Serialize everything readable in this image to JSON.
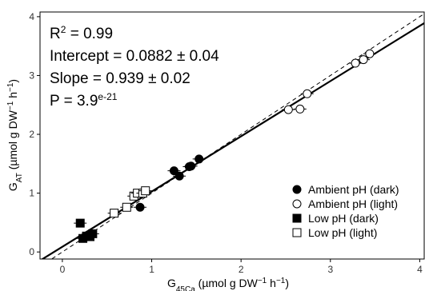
{
  "chart_data": {
    "type": "scatter",
    "xlabel": "G45Ca (µmol g DW⁻¹ h⁻¹)",
    "ylabel": "GAT (µmol g DW⁻¹ h⁻¹)",
    "xlim": [
      -0.25,
      4.05
    ],
    "ylim": [
      -0.12,
      4.08
    ],
    "x_ticks": [
      0,
      1,
      2,
      3,
      4
    ],
    "y_ticks": [
      0,
      1,
      2,
      3,
      4
    ],
    "grid": false,
    "legend_position": "bottom-right",
    "stats": {
      "r2_prefix": "R",
      "r2_sup": "2",
      "r2_value": " = 0.99",
      "intercept": "Intercept = 0.0882 ± 0.04",
      "slope": "Slope = 0.939 ± 0.02",
      "p_prefix": "P = 3.9",
      "p_sup": "e-21"
    },
    "fit_line": {
      "intercept": 0.0882,
      "slope": 0.939,
      "style": "solid"
    },
    "identity_line": {
      "intercept": 0,
      "slope": 1,
      "style": "dashed"
    },
    "series": [
      {
        "name": "Ambient pH (dark)",
        "marker": "filled-circle",
        "points": [
          [
            0.87,
            0.76
          ],
          [
            1.25,
            1.38
          ],
          [
            1.31,
            1.29
          ],
          [
            1.42,
            1.45
          ],
          [
            1.44,
            1.46
          ],
          [
            1.53,
            1.58
          ]
        ]
      },
      {
        "name": "Ambient pH (light)",
        "marker": "open-circle",
        "points": [
          [
            2.53,
            2.42
          ],
          [
            2.66,
            2.43
          ],
          [
            2.74,
            2.69
          ],
          [
            3.28,
            3.21
          ],
          [
            3.37,
            3.27
          ],
          [
            3.44,
            3.37
          ]
        ]
      },
      {
        "name": "Low pH (dark)",
        "marker": "filled-square",
        "points": [
          [
            0.2,
            0.49
          ],
          [
            0.23,
            0.23
          ],
          [
            0.27,
            0.27
          ],
          [
            0.31,
            0.26
          ],
          [
            0.34,
            0.31
          ]
        ]
      },
      {
        "name": "Low pH (light)",
        "marker": "open-square",
        "points": [
          [
            0.58,
            0.66
          ],
          [
            0.72,
            0.76
          ],
          [
            0.8,
            0.95
          ],
          [
            0.84,
            1.0
          ],
          [
            0.9,
            1.0
          ],
          [
            0.93,
            1.04
          ]
        ]
      }
    ]
  }
}
